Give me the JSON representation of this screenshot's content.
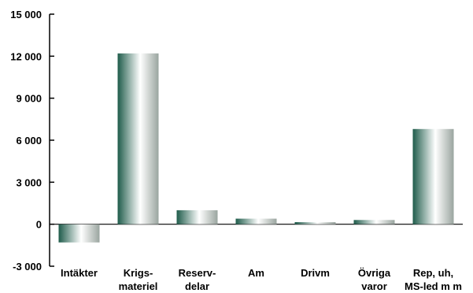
{
  "chart_data": {
    "type": "bar",
    "title": "",
    "xlabel": "",
    "ylabel": "",
    "ylim": [
      -3000,
      15000
    ],
    "yticks": [
      15000,
      12000,
      9000,
      6000,
      3000,
      0,
      -3000
    ],
    "ytick_labels": [
      "15 000",
      "12 000",
      "9 000",
      "6 000",
      "3 000",
      "0",
      "-3 000"
    ],
    "categories": [
      [
        "Intäkter"
      ],
      [
        "Krigs-",
        "materiel"
      ],
      [
        "Reserv-",
        "delar"
      ],
      [
        "Am"
      ],
      [
        "Drivm"
      ],
      [
        "Övriga",
        "varor"
      ],
      [
        "Rep, uh,",
        "MS-led m m"
      ]
    ],
    "values": [
      -1300,
      12200,
      1000,
      400,
      150,
      300,
      6800
    ],
    "bar_colors": {
      "edge": "#1f5c4b",
      "highlight": "#ffffff",
      "mid": "#9aa59f"
    },
    "grid": false,
    "legend": "none"
  }
}
